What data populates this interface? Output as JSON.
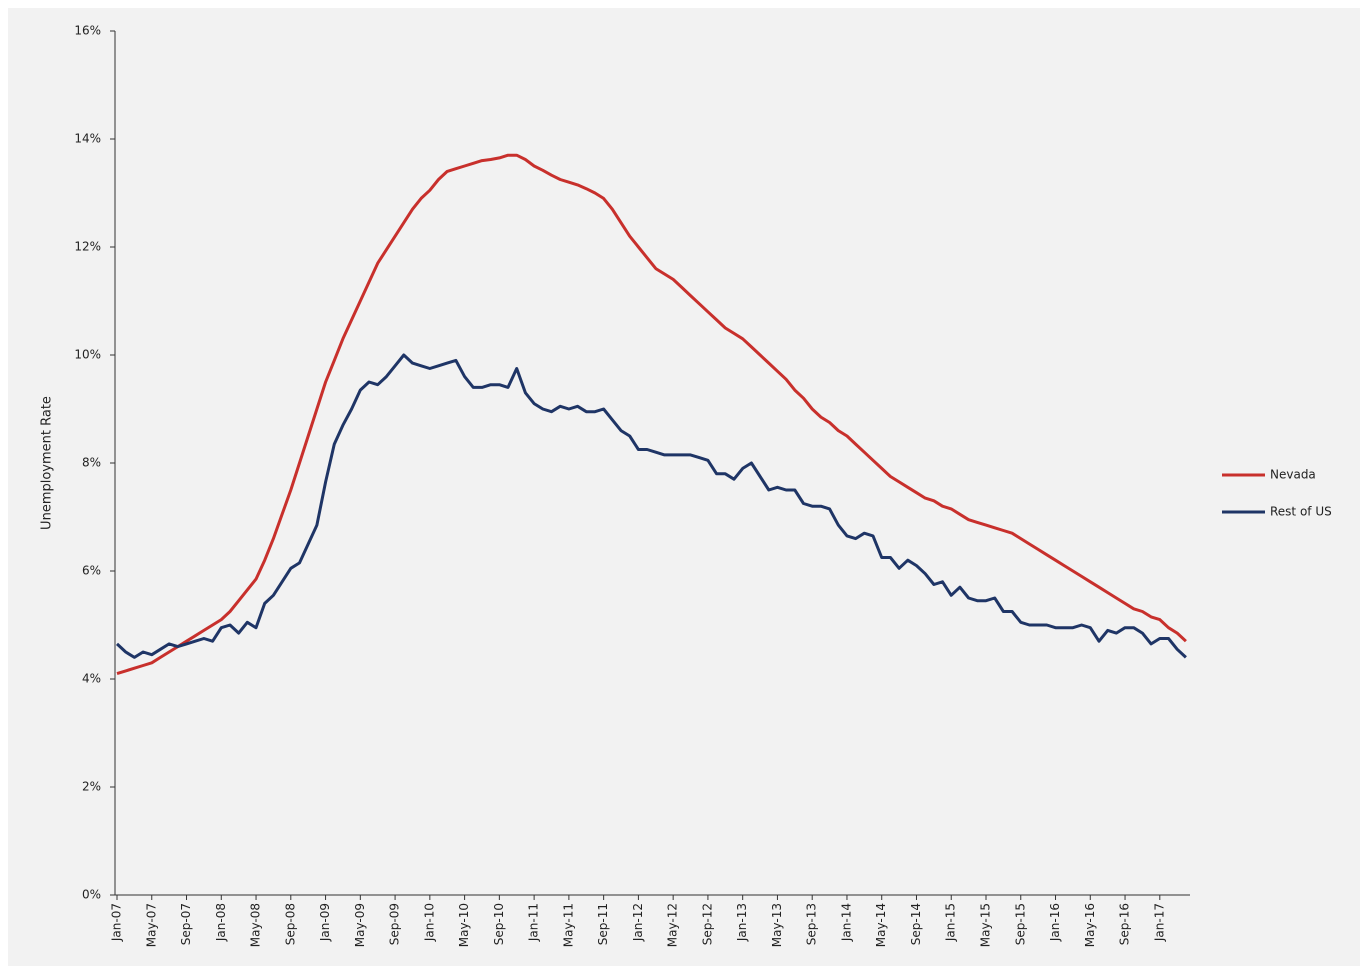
{
  "chart_data": {
    "type": "line",
    "y_label": "Unemployment Rate",
    "categories": [
      "Jan-07",
      null,
      null,
      null,
      "May-07",
      null,
      null,
      null,
      "Sep-07",
      null,
      null,
      null,
      "Jan-08",
      null,
      null,
      null,
      "May-08",
      null,
      null,
      null,
      "Sep-08",
      null,
      null,
      null,
      "Jan-09",
      null,
      null,
      null,
      "May-09",
      null,
      null,
      null,
      "Sep-09",
      null,
      null,
      null,
      "Jan-10",
      null,
      null,
      null,
      "May-10",
      null,
      null,
      null,
      "Sep-10",
      null,
      null,
      null,
      "Jan-11",
      null,
      null,
      null,
      "May-11",
      null,
      null,
      null,
      "Sep-11",
      null,
      null,
      null,
      "Jan-12",
      null,
      null,
      null,
      "May-12",
      null,
      null,
      null,
      "Sep-12",
      null,
      null,
      null,
      "Jan-13",
      null,
      null,
      null,
      "May-13",
      null,
      null,
      null,
      "Sep-13",
      null,
      null,
      null,
      "Jan-14",
      null,
      null,
      null,
      "May-14",
      null,
      null,
      null,
      "Sep-14",
      null,
      null,
      null,
      "Jan-15",
      null,
      null,
      null,
      "May-15",
      null,
      null,
      null,
      "Sep-15",
      null,
      null,
      null,
      "Jan-16",
      null,
      null,
      null,
      "May-16",
      null,
      null,
      null,
      "Sep-16",
      null,
      null,
      null,
      "Jan-17",
      null,
      null,
      null
    ],
    "series": [
      {
        "name": "Nevada",
        "color": "#c8302c",
        "values": [
          4.1,
          4.15,
          4.2,
          4.25,
          4.3,
          4.4,
          4.5,
          4.6,
          4.7,
          4.8,
          4.9,
          5.0,
          5.1,
          5.25,
          5.45,
          5.65,
          5.85,
          6.2,
          6.6,
          7.05,
          7.5,
          8.0,
          8.5,
          9.0,
          9.5,
          9.9,
          10.3,
          10.65,
          11.0,
          11.35,
          11.7,
          11.95,
          12.2,
          12.45,
          12.7,
          12.9,
          13.05,
          13.25,
          13.4,
          13.45,
          13.5,
          13.55,
          13.6,
          13.62,
          13.65,
          13.7,
          13.7,
          13.62,
          13.5,
          13.42,
          13.33,
          13.25,
          13.2,
          13.15,
          13.08,
          13.0,
          12.9,
          12.7,
          12.45,
          12.2,
          12.0,
          11.8,
          11.6,
          11.5,
          11.4,
          11.25,
          11.1,
          10.95,
          10.8,
          10.65,
          10.5,
          10.4,
          10.3,
          10.15,
          10.0,
          9.85,
          9.7,
          9.55,
          9.35,
          9.2,
          9.0,
          8.85,
          8.75,
          8.6,
          8.5,
          8.35,
          8.2,
          8.05,
          7.9,
          7.75,
          7.65,
          7.55,
          7.45,
          7.35,
          7.3,
          7.2,
          7.15,
          7.05,
          6.95,
          6.9,
          6.85,
          6.8,
          6.75,
          6.7,
          6.6,
          6.5,
          6.4,
          6.3,
          6.2,
          6.1,
          6.0,
          5.9,
          5.8,
          5.7,
          5.6,
          5.5,
          5.4,
          5.3,
          5.25,
          5.15,
          5.1,
          4.95,
          4.85,
          4.7
        ]
      },
      {
        "name": "Rest of US",
        "color": "#1f3566",
        "values": [
          4.65,
          4.5,
          4.4,
          4.5,
          4.45,
          4.55,
          4.65,
          4.6,
          4.65,
          4.7,
          4.75,
          4.7,
          4.95,
          5.0,
          4.85,
          5.05,
          4.95,
          5.4,
          5.55,
          5.8,
          6.05,
          6.15,
          6.5,
          6.85,
          7.65,
          8.35,
          8.7,
          9.0,
          9.35,
          9.5,
          9.45,
          9.6,
          9.8,
          10.0,
          9.85,
          9.8,
          9.75,
          9.8,
          9.85,
          9.9,
          9.6,
          9.4,
          9.4,
          9.45,
          9.45,
          9.4,
          9.75,
          9.3,
          9.1,
          9.0,
          8.95,
          9.05,
          9.0,
          9.05,
          8.95,
          8.95,
          9.0,
          8.8,
          8.6,
          8.5,
          8.25,
          8.25,
          8.2,
          8.15,
          8.15,
          8.15,
          8.15,
          8.1,
          8.05,
          7.8,
          7.8,
          7.7,
          7.9,
          8.0,
          7.75,
          7.5,
          7.55,
          7.5,
          7.5,
          7.25,
          7.2,
          7.2,
          7.15,
          6.85,
          6.65,
          6.6,
          6.7,
          6.65,
          6.25,
          6.25,
          6.05,
          6.2,
          6.1,
          5.95,
          5.75,
          5.8,
          5.55,
          5.7,
          5.5,
          5.45,
          5.45,
          5.5,
          5.25,
          5.25,
          5.05,
          5.0,
          5.0,
          5.0,
          4.95,
          4.95,
          4.95,
          5.0,
          4.95,
          4.7,
          4.9,
          4.85,
          4.95,
          4.95,
          4.85,
          4.65,
          4.75,
          4.75,
          4.55,
          4.4
        ]
      }
    ],
    "ylim": [
      0,
      16
    ],
    "yticks": [
      {
        "value": 0,
        "label": "0%"
      },
      {
        "value": 2,
        "label": "2%"
      },
      {
        "value": 4,
        "label": "4%"
      },
      {
        "value": 6,
        "label": "6%"
      },
      {
        "value": 8,
        "label": "8%"
      },
      {
        "value": 10,
        "label": "10%"
      },
      {
        "value": 12,
        "label": "12%"
      },
      {
        "value": 14,
        "label": "14%"
      },
      {
        "value": 16,
        "label": "16%"
      }
    ],
    "grid": false,
    "legend": "right"
  }
}
